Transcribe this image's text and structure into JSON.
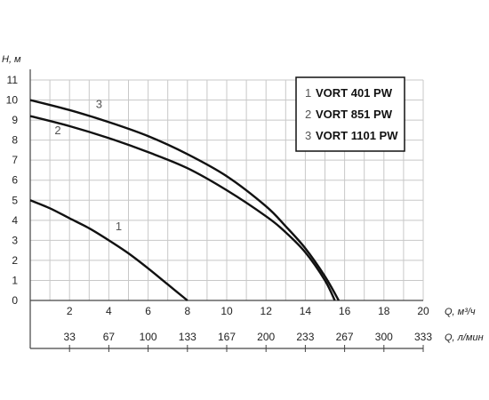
{
  "chart_data": {
    "type": "line",
    "y_axis": {
      "label": "H, м",
      "ylim": [
        0,
        11
      ],
      "ticks": [
        "0",
        "1",
        "2",
        "3",
        "4",
        "5",
        "6",
        "7",
        "8",
        "9",
        "10",
        "11"
      ]
    },
    "x_axis": {
      "label": "Q, м³/ч",
      "xlim": [
        0,
        20
      ],
      "ticks": [
        "2",
        "4",
        "6",
        "8",
        "10",
        "12",
        "14",
        "16",
        "18",
        "20"
      ]
    },
    "x_axis_secondary": {
      "label": "Q, л/мин",
      "ticks": [
        "33",
        "67",
        "100",
        "133",
        "167",
        "200",
        "233",
        "267",
        "300",
        "333"
      ]
    },
    "grid": true,
    "legend_position": "top-right",
    "series": [
      {
        "id": "1",
        "name": "VORT 401 PW",
        "color": "#111111",
        "x": [
          0,
          1,
          2,
          3,
          4,
          5,
          6,
          7,
          8
        ],
        "y": [
          5.0,
          4.6,
          4.1,
          3.6,
          3.0,
          2.35,
          1.6,
          0.8,
          0.0
        ]
      },
      {
        "id": "2",
        "name": "VORT 851 PW",
        "color": "#111111",
        "x": [
          0,
          2,
          4,
          6,
          8,
          10,
          12,
          13,
          14,
          15,
          15.5
        ],
        "y": [
          9.2,
          8.7,
          8.1,
          7.4,
          6.6,
          5.5,
          4.2,
          3.4,
          2.4,
          1.0,
          0.0
        ]
      },
      {
        "id": "3",
        "name": "VORT 1101 PW",
        "color": "#111111",
        "x": [
          0,
          2,
          4,
          6,
          8,
          10,
          12,
          13,
          14,
          15,
          15.7
        ],
        "y": [
          10.0,
          9.5,
          8.9,
          8.2,
          7.3,
          6.2,
          4.7,
          3.7,
          2.6,
          1.2,
          0.0
        ]
      }
    ]
  }
}
